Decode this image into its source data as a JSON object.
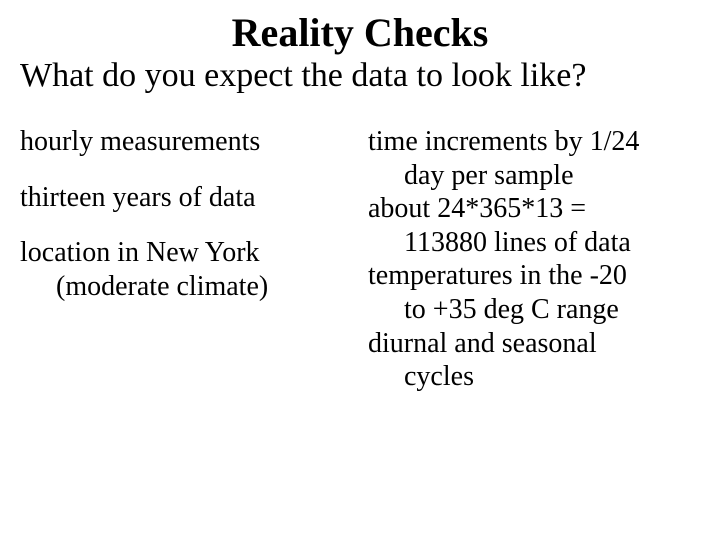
{
  "title": "Reality Checks",
  "subtitle": "What do you expect the data to look like?",
  "left": {
    "item1": "hourly measurements",
    "item2": "thirteen years of data",
    "item3_line1": "location in New York",
    "item3_line2": "(moderate climate)"
  },
  "right": {
    "item1_line1": "time increments by 1/24",
    "item1_line2": "day per sample",
    "item2_line1": "about 24*365*13 =",
    "item2_line2": "113880 lines of data",
    "item3_line1": "temperatures in the -20",
    "item3_line2": "to +35 deg C range",
    "item4_line1": "diurnal and seasonal",
    "item4_line2": "cycles"
  }
}
